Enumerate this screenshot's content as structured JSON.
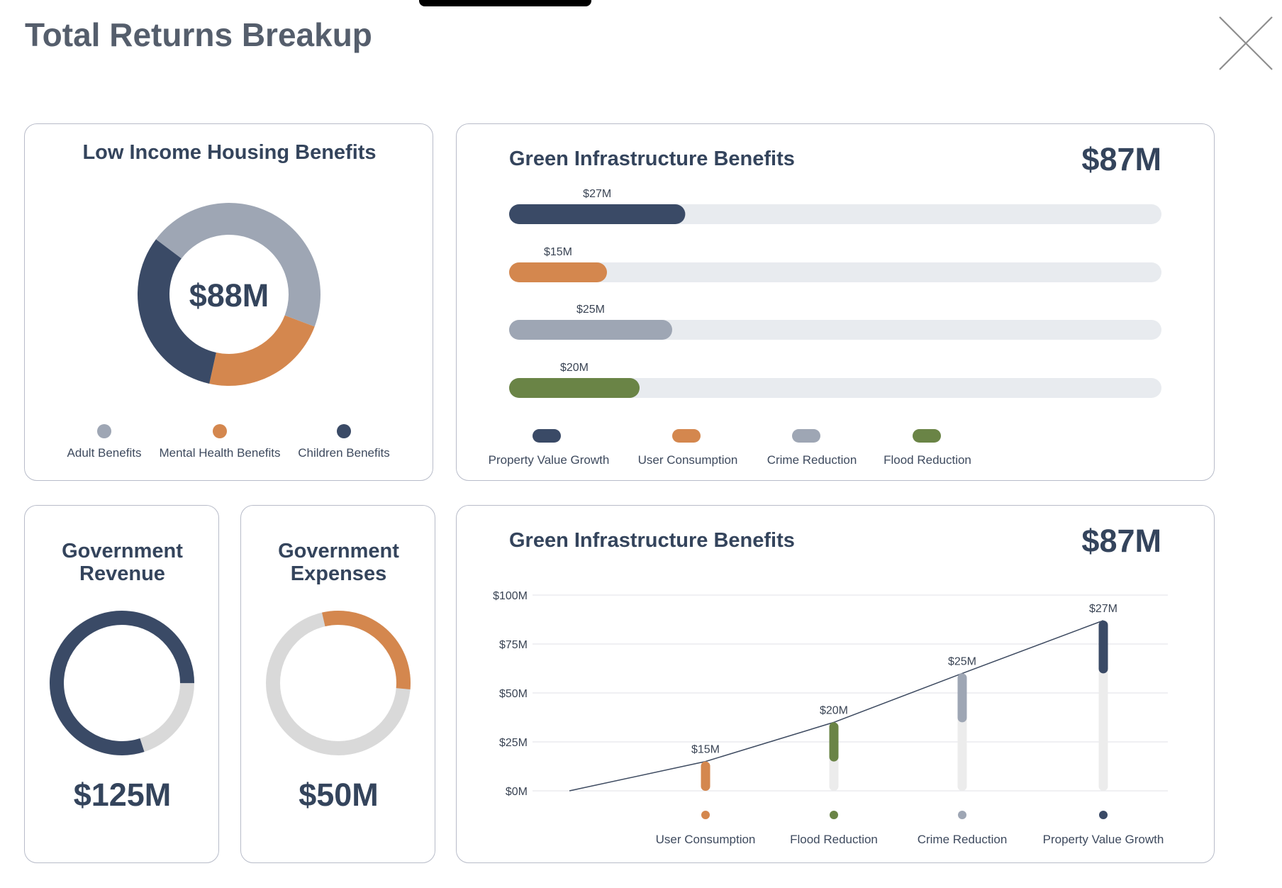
{
  "page": {
    "title": "Total Returns Breakup"
  },
  "colors": {
    "navy": "#3a4a66",
    "orange": "#d4874e",
    "gray": "#9ea6b4",
    "green": "#6a8446",
    "track": "#e8ebef",
    "ring_track": "#d9d9d9",
    "grid": "#e6e8ec"
  },
  "icons": {
    "close": "close-icon"
  },
  "low_income_housing": {
    "title": "Low Income Housing Benefits",
    "total_label": "$88M",
    "legend": [
      {
        "label": "Adult Benefits",
        "color": "#9ea6b4"
      },
      {
        "label": "Mental Health Benefits",
        "color": "#d4874e"
      },
      {
        "label": "Children Benefits",
        "color": "#3a4a66"
      }
    ]
  },
  "green_infra_bars": {
    "title": "Green Infrastructure Benefits",
    "total_label": "$87M",
    "legend": [
      {
        "label": "Property Value Growth",
        "color": "#3a4a66"
      },
      {
        "label": "User Consumption",
        "color": "#d4874e"
      },
      {
        "label": "Crime Reduction",
        "color": "#9ea6b4"
      },
      {
        "label": "Flood Reduction",
        "color": "#6a8446"
      }
    ]
  },
  "gov_revenue": {
    "title_line1": "Government",
    "title_line2": "Revenue",
    "value_label": "$125M",
    "fraction": 0.8,
    "color": "#3a4a66"
  },
  "gov_expenses": {
    "title_line1": "Government",
    "title_line2": "Expenses",
    "value_label": "$50M",
    "fraction": 0.3,
    "color": "#d4874e"
  },
  "green_infra_line": {
    "title": "Green Infrastructure Benefits",
    "total_label": "$87M"
  },
  "chart_data": [
    {
      "type": "pie",
      "title": "Low Income Housing Benefits",
      "categories": [
        "Adult Benefits",
        "Mental Health Benefits",
        "Children Benefits"
      ],
      "values": [
        40,
        20,
        28
      ],
      "center_label": "$88M",
      "legend": "bottom"
    },
    {
      "type": "bar",
      "orientation": "horizontal",
      "title": "Green Infrastructure Benefits",
      "categories": [
        "Property Value Growth",
        "User Consumption",
        "Crime Reduction",
        "Flood Reduction"
      ],
      "values": [
        27,
        15,
        25,
        20
      ],
      "data_labels": [
        "$27M",
        "$15M",
        "$25M",
        "$20M"
      ],
      "xlim": [
        0,
        100
      ],
      "legend": "bottom"
    },
    {
      "type": "line",
      "title": "Green Infrastructure Benefits",
      "categories": [
        "User Consumption",
        "Flood Reduction",
        "Crime Reduction",
        "Property Value Growth"
      ],
      "values": [
        15,
        20,
        25,
        27
      ],
      "cumulative": [
        15,
        35,
        60,
        87
      ],
      "data_labels": [
        "$15M",
        "$20M",
        "$25M",
        "$27M"
      ],
      "ylim": [
        0,
        100
      ],
      "yticks": [
        0,
        25,
        50,
        75,
        100
      ],
      "ytick_labels": [
        "$0M",
        "$25M",
        "$50M",
        "$75M",
        "$100M"
      ],
      "grid": true,
      "legend": "bottom"
    }
  ]
}
